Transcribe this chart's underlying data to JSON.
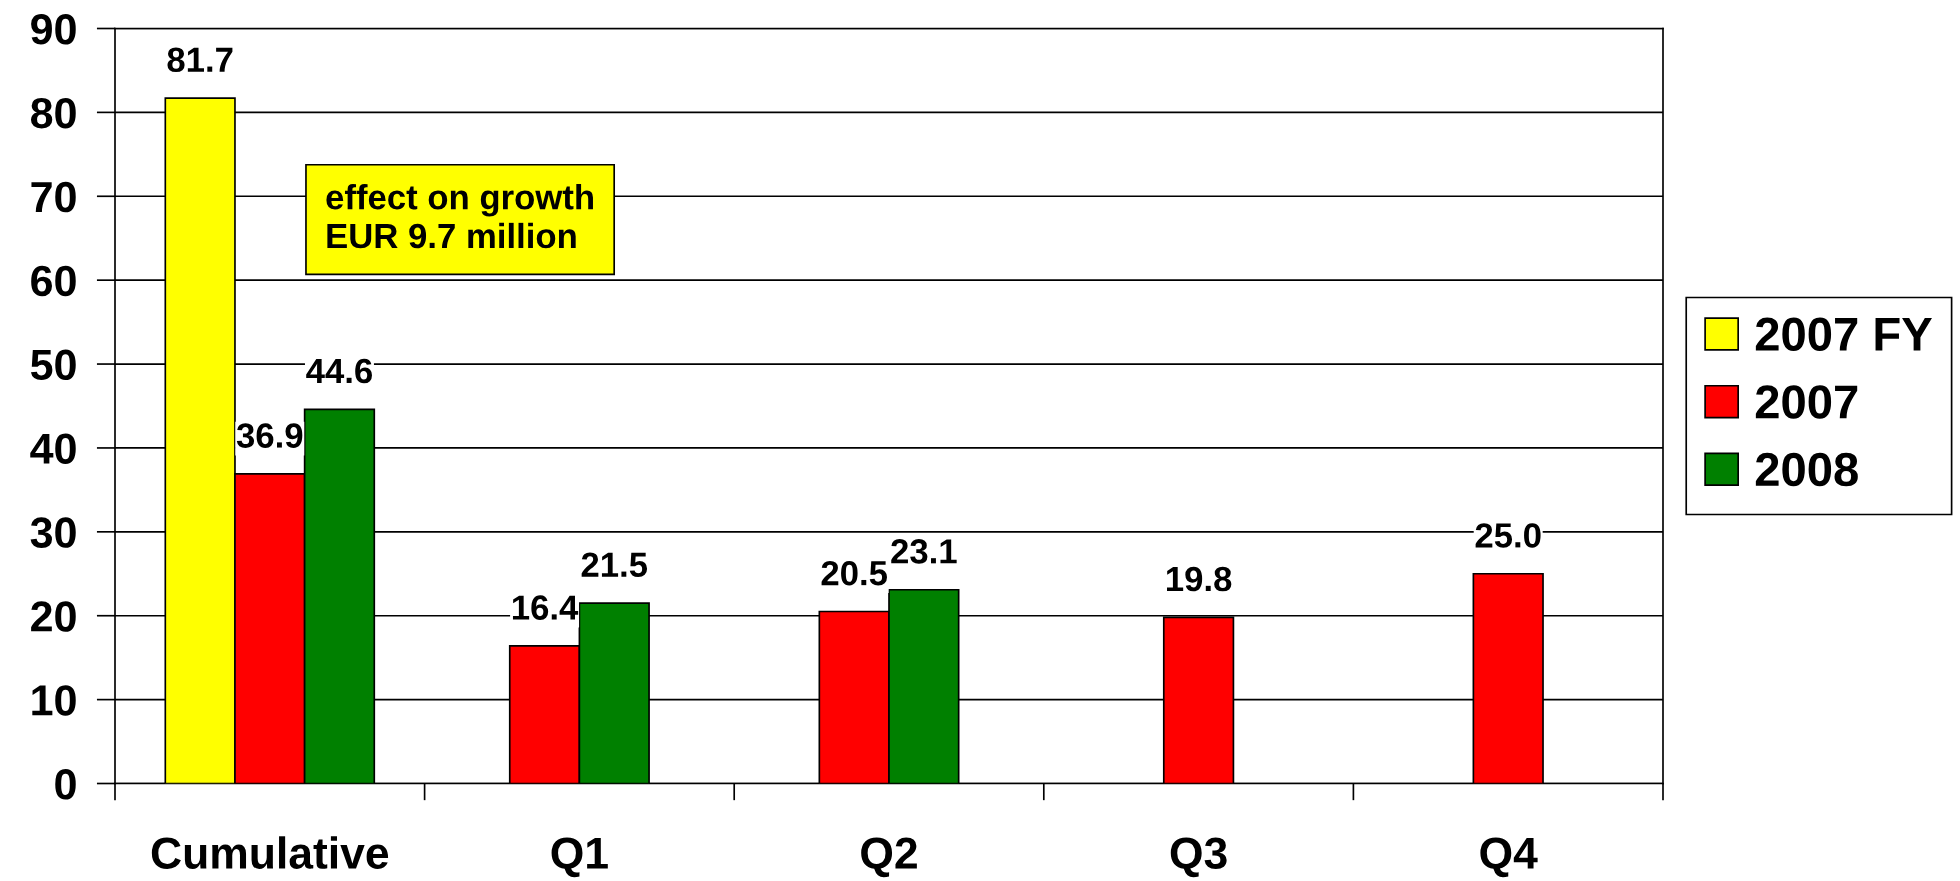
{
  "chart_data": {
    "type": "bar",
    "categories": [
      "Cumulative",
      "Q1",
      "Q2",
      "Q3",
      "Q4"
    ],
    "series": [
      {
        "name": "2007 FY",
        "color": "#ffff00",
        "values": [
          81.7,
          null,
          null,
          null,
          null
        ],
        "value_labels": [
          "81.7",
          null,
          null,
          null,
          null
        ]
      },
      {
        "name": "2007",
        "color": "#ff0000",
        "values": [
          36.9,
          16.4,
          20.5,
          19.8,
          25.0
        ],
        "value_labels": [
          "36.9",
          "16.4",
          "20.5",
          "19.8",
          "25.0"
        ]
      },
      {
        "name": "2008",
        "color": "#008000",
        "values": [
          44.6,
          21.5,
          23.1,
          null,
          null
        ],
        "value_labels": [
          "44.6",
          "21.5",
          "23.1",
          null,
          null
        ]
      }
    ],
    "ylim": [
      0,
      90
    ],
    "yticks": [
      0,
      10,
      20,
      30,
      40,
      50,
      60,
      70,
      80,
      90
    ],
    "grid": "y",
    "legend": "right",
    "annotations": [
      "effect on growth\nEUR 9.7 million"
    ]
  }
}
